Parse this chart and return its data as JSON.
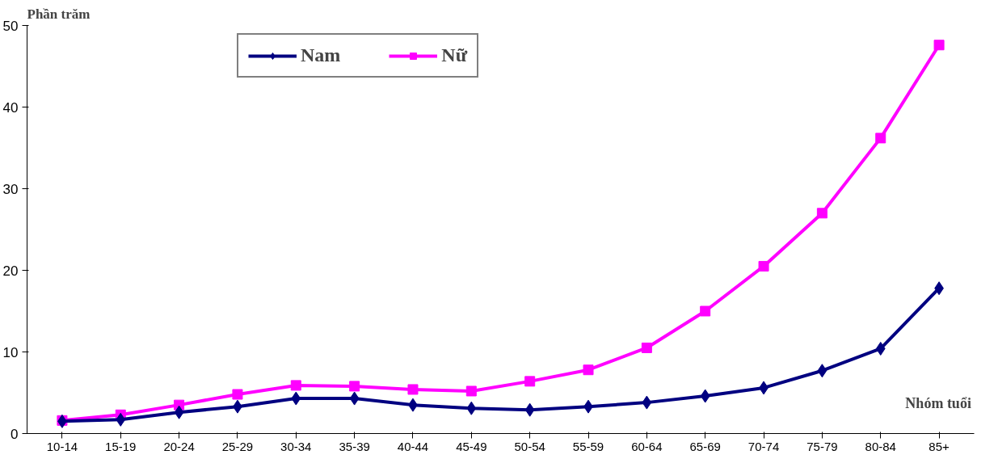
{
  "chart_data": {
    "type": "line",
    "ylabel": "Phần trăm",
    "xlabel": "Nhóm tuổi",
    "categories": [
      "10-14",
      "15-19",
      "20-24",
      "25-29",
      "30-34",
      "35-39",
      "40-44",
      "45-49",
      "50-54",
      "55-59",
      "60-64",
      "65-69",
      "70-74",
      "75-79",
      "80-84",
      "85+"
    ],
    "series": [
      {
        "name": "Nam",
        "color": "#000080",
        "marker": "diamond",
        "values": [
          1.5,
          1.7,
          2.6,
          3.3,
          4.3,
          4.3,
          3.5,
          3.1,
          2.9,
          3.3,
          3.8,
          4.6,
          5.6,
          7.7,
          10.4,
          17.8
        ]
      },
      {
        "name": "Nữ",
        "color": "#ff00ff",
        "marker": "square",
        "values": [
          1.6,
          2.3,
          3.5,
          4.8,
          5.9,
          5.8,
          5.4,
          5.2,
          6.4,
          7.8,
          10.5,
          15.0,
          20.5,
          27.0,
          36.2,
          47.6
        ]
      }
    ],
    "ylim": [
      0,
      50
    ],
    "yticks": [
      0,
      10,
      20,
      30,
      40,
      50
    ],
    "grid": false,
    "legend": "top",
    "line_style": "solid"
  }
}
